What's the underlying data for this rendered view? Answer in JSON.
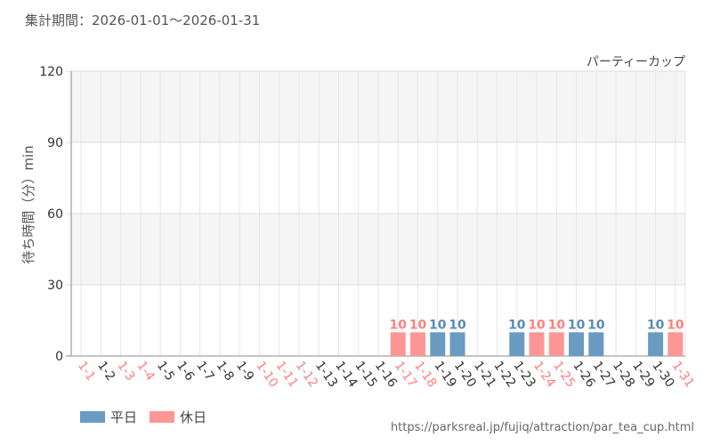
{
  "header": {
    "period": "集計期間：2026-01-01～2026-01-31"
  },
  "footer": {
    "source_url": "https://parksreal.jp/fujiq/attraction/par_tea_cup.html"
  },
  "chart_data": {
    "type": "bar",
    "title": "パーティーカップ",
    "ylabel": "待ち時間（分）min",
    "ylim": [
      0,
      120
    ],
    "yticks": [
      0,
      30,
      60,
      90,
      120
    ],
    "categories": [
      "1-1",
      "1-2",
      "1-3",
      "1-4",
      "1-5",
      "1-6",
      "1-7",
      "1-8",
      "1-9",
      "1-10",
      "1-11",
      "1-12",
      "1-13",
      "1-14",
      "1-15",
      "1-16",
      "1-17",
      "1-18",
      "1-19",
      "1-20",
      "1-21",
      "1-22",
      "1-23",
      "1-24",
      "1-25",
      "1-26",
      "1-27",
      "1-28",
      "1-29",
      "1-30",
      "1-31"
    ],
    "holiday": [
      true,
      false,
      true,
      true,
      false,
      false,
      false,
      false,
      false,
      true,
      true,
      true,
      false,
      false,
      false,
      false,
      true,
      true,
      false,
      false,
      false,
      false,
      false,
      true,
      true,
      false,
      false,
      false,
      false,
      false,
      true
    ],
    "values": [
      null,
      null,
      null,
      null,
      null,
      null,
      null,
      null,
      null,
      null,
      null,
      null,
      null,
      null,
      null,
      null,
      10,
      10,
      10,
      10,
      null,
      null,
      10,
      10,
      10,
      10,
      10,
      null,
      null,
      10,
      10
    ],
    "legend": [
      {
        "name": "平日",
        "color": "#6a9bc3"
      },
      {
        "name": "休日",
        "color": "#ff9696"
      }
    ],
    "colors": {
      "weekday": "#6a9bc3",
      "weekday_label": "#5b8ab4",
      "holiday": "#ff9696",
      "holiday_label": "#ff8080",
      "band": "#f5f5f5"
    }
  }
}
